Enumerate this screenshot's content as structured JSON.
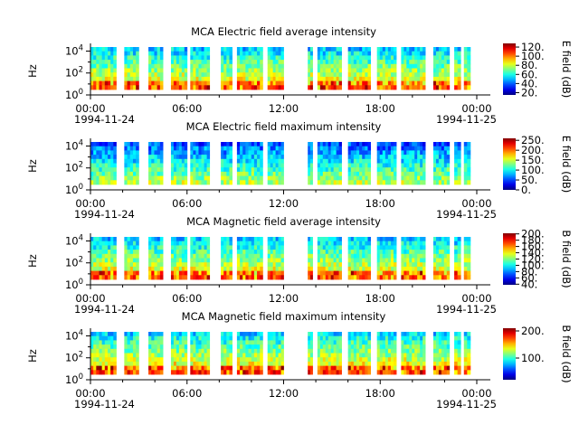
{
  "figure": {
    "x_tick_labels": [
      "00:00",
      "06:00",
      "12:00",
      "18:00",
      "00:00"
    ],
    "x_date_labels": [
      "1994-11-24",
      "1994-11-25"
    ]
  },
  "chart_data": [
    {
      "type": "heatmap",
      "title": "MCA  Electric field average intensity",
      "ylabel": "Hz",
      "y_tick_labels": [
        "10^0",
        "10^2",
        "10^4"
      ],
      "y_scale": "log",
      "ylim_log10": [
        0,
        4.7
      ],
      "x_range": [
        "1994-11-24T00:00",
        "1994-11-25T00:00"
      ],
      "colorbar": {
        "label": "E field (dB)",
        "ticks": [
          "20.",
          "40.",
          "60.",
          "80.",
          "100.",
          "120."
        ],
        "range": [
          15,
          128
        ]
      },
      "data_gaps_hours": [
        [
          1.6,
          2.1
        ],
        [
          3.0,
          3.6
        ],
        [
          4.5,
          5.0
        ],
        [
          6.0,
          6.2
        ],
        [
          7.4,
          8.1
        ],
        [
          8.8,
          9.1
        ],
        [
          10.7,
          11.0
        ],
        [
          12.0,
          13.5
        ],
        [
          13.8,
          14.1
        ],
        [
          15.6,
          16.0
        ],
        [
          17.4,
          17.8
        ],
        [
          19.0,
          19.3
        ],
        [
          20.8,
          21.3
        ],
        [
          22.3,
          22.6
        ],
        [
          23.0,
          23.2
        ]
      ],
      "data_extent_hours": [
        0.0,
        23.6
      ]
    },
    {
      "type": "heatmap",
      "title": "MCA  Electric field maximum intensity",
      "ylabel": "Hz",
      "y_tick_labels": [
        "10^0",
        "10^2",
        "10^4"
      ],
      "y_scale": "log",
      "ylim_log10": [
        0,
        4.7
      ],
      "x_range": [
        "1994-11-24T00:00",
        "1994-11-25T00:00"
      ],
      "colorbar": {
        "label": "E field (dB)",
        "ticks": [
          "0.",
          "50.",
          "100.",
          "150.",
          "200.",
          "250."
        ],
        "range": [
          0,
          260
        ]
      },
      "data_gaps_hours": [
        [
          1.6,
          2.1
        ],
        [
          3.0,
          3.6
        ],
        [
          4.5,
          5.0
        ],
        [
          6.0,
          6.2
        ],
        [
          7.4,
          8.1
        ],
        [
          8.8,
          9.1
        ],
        [
          10.7,
          11.0
        ],
        [
          12.0,
          13.5
        ],
        [
          13.8,
          14.1
        ],
        [
          15.6,
          16.0
        ],
        [
          17.4,
          17.8
        ],
        [
          19.0,
          19.3
        ],
        [
          20.8,
          21.3
        ],
        [
          22.3,
          22.6
        ],
        [
          23.0,
          23.2
        ]
      ],
      "data_extent_hours": [
        0.0,
        23.6
      ]
    },
    {
      "type": "heatmap",
      "title": "MCA  Magnetic field average intensity",
      "ylabel": "Hz",
      "y_tick_labels": [
        "10^0",
        "10^2",
        "10^4"
      ],
      "y_scale": "log",
      "ylim_log10": [
        0,
        4.7
      ],
      "x_range": [
        "1994-11-24T00:00",
        "1994-11-25T00:00"
      ],
      "colorbar": {
        "label": "B field (dB)",
        "ticks": [
          "40.",
          "60.",
          "80.",
          "100.",
          "120.",
          "140.",
          "160.",
          "180.",
          "200."
        ],
        "range": [
          38,
          202
        ]
      },
      "data_gaps_hours": [
        [
          1.6,
          2.1
        ],
        [
          3.0,
          3.6
        ],
        [
          4.5,
          5.0
        ],
        [
          6.0,
          6.2
        ],
        [
          7.4,
          8.1
        ],
        [
          8.8,
          9.1
        ],
        [
          10.7,
          11.0
        ],
        [
          12.0,
          13.5
        ],
        [
          13.8,
          14.1
        ],
        [
          15.6,
          16.0
        ],
        [
          17.4,
          17.8
        ],
        [
          19.0,
          19.3
        ],
        [
          20.8,
          21.3
        ],
        [
          22.3,
          22.6
        ],
        [
          23.0,
          23.2
        ]
      ],
      "data_extent_hours": [
        0.0,
        23.6
      ]
    },
    {
      "type": "heatmap",
      "title": "MCA  Magnetic field maximum intensity",
      "ylabel": "Hz",
      "y_tick_labels": [
        "10^0",
        "10^2",
        "10^4"
      ],
      "y_scale": "log",
      "ylim_log10": [
        0,
        4.7
      ],
      "x_range": [
        "1994-11-24T00:00",
        "1994-11-25T00:00"
      ],
      "colorbar": {
        "label": "B field (dB)",
        "ticks": [
          "100.",
          "200."
        ],
        "range": [
          20,
          210
        ]
      },
      "data_gaps_hours": [
        [
          1.6,
          2.1
        ],
        [
          3.0,
          3.6
        ],
        [
          4.5,
          5.0
        ],
        [
          6.0,
          6.2
        ],
        [
          7.4,
          8.1
        ],
        [
          8.8,
          9.1
        ],
        [
          10.7,
          11.0
        ],
        [
          12.0,
          13.5
        ],
        [
          13.8,
          14.1
        ],
        [
          15.6,
          16.0
        ],
        [
          17.4,
          17.8
        ],
        [
          19.0,
          19.3
        ],
        [
          20.8,
          21.3
        ],
        [
          22.3,
          22.6
        ],
        [
          23.0,
          23.2
        ]
      ],
      "data_extent_hours": [
        0.0,
        23.6
      ]
    }
  ]
}
